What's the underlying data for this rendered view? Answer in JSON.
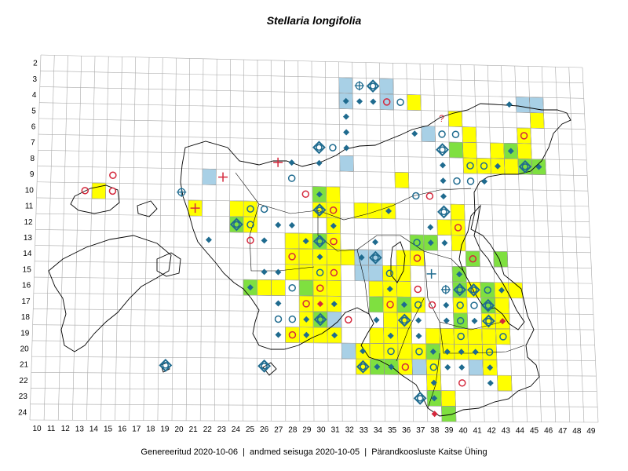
{
  "title": "Stellaria longifolia",
  "footer": {
    "generated": "Genereeritud 2020-10-06",
    "status": "andmed seisuga 2020-10-05",
    "org": "Pärandkoosluste Kaitse Ühing",
    "separator": "|"
  },
  "grid": {
    "rows": [
      2,
      3,
      4,
      5,
      6,
      7,
      8,
      9,
      10,
      11,
      12,
      13,
      14,
      15,
      16,
      17,
      18,
      19,
      20,
      21,
      22,
      23,
      24
    ],
    "cols": [
      10,
      11,
      12,
      13,
      14,
      15,
      16,
      17,
      18,
      19,
      20,
      21,
      22,
      23,
      24,
      25,
      26,
      27,
      28,
      29,
      30,
      31,
      32,
      33,
      34,
      35,
      36,
      37,
      38,
      39,
      40,
      41,
      42,
      43,
      44,
      45,
      46,
      47,
      48,
      49
    ]
  },
  "colors": {
    "yellow": "#ffff00",
    "green": "#7fe040",
    "blue": "#a8d0e6",
    "marker_blue": "#1f6b8f",
    "marker_red": "#d4283c",
    "grid_line": "#aaaaaa",
    "coast": "#000000"
  },
  "cells": [
    {
      "c": 32,
      "r": 3,
      "t": "blue"
    },
    {
      "c": 35,
      "r": 3,
      "t": "blue"
    },
    {
      "c": 32,
      "r": 4,
      "t": "blue"
    },
    {
      "c": 35,
      "r": 4,
      "t": "blue"
    },
    {
      "c": 37,
      "r": 4,
      "t": "yellow"
    },
    {
      "c": 45,
      "r": 4,
      "t": "blue"
    },
    {
      "c": 46,
      "r": 4,
      "t": "blue"
    },
    {
      "c": 40,
      "r": 5,
      "t": "yellow"
    },
    {
      "c": 46,
      "r": 5,
      "t": "yellow"
    },
    {
      "c": 41,
      "r": 6,
      "t": "yellow"
    },
    {
      "c": 45,
      "r": 6,
      "t": "yellow"
    },
    {
      "c": 38,
      "r": 6,
      "t": "blue"
    },
    {
      "c": 40,
      "r": 7,
      "t": "green"
    },
    {
      "c": 41,
      "r": 7,
      "t": "yellow"
    },
    {
      "c": 43,
      "r": 7,
      "t": "yellow"
    },
    {
      "c": 44,
      "r": 7,
      "t": "green"
    },
    {
      "c": 45,
      "r": 7,
      "t": "yellow"
    },
    {
      "c": 32,
      "r": 8,
      "t": "blue"
    },
    {
      "c": 41,
      "r": 8,
      "t": "yellow"
    },
    {
      "c": 42,
      "r": 8,
      "t": "yellow"
    },
    {
      "c": 43,
      "r": 8,
      "t": "yellow"
    },
    {
      "c": 44,
      "r": 8,
      "t": "yellow"
    },
    {
      "c": 45,
      "r": 8,
      "t": "green"
    },
    {
      "c": 46,
      "r": 8,
      "t": "green"
    },
    {
      "c": 22,
      "r": 9,
      "t": "blue"
    },
    {
      "c": 36,
      "r": 9,
      "t": "yellow"
    },
    {
      "c": 14,
      "r": 10,
      "t": "yellow"
    },
    {
      "c": 30,
      "r": 10,
      "t": "green"
    },
    {
      "c": 31,
      "r": 10,
      "t": "yellow"
    },
    {
      "c": 21,
      "r": 11,
      "t": "yellow"
    },
    {
      "c": 24,
      "r": 11,
      "t": "yellow"
    },
    {
      "c": 25,
      "r": 11,
      "t": "yellow"
    },
    {
      "c": 30,
      "r": 11,
      "t": "yellow"
    },
    {
      "c": 31,
      "r": 11,
      "t": "yellow"
    },
    {
      "c": 33,
      "r": 11,
      "t": "yellow"
    },
    {
      "c": 34,
      "r": 11,
      "t": "yellow"
    },
    {
      "c": 35,
      "r": 11,
      "t": "yellow"
    },
    {
      "c": 40,
      "r": 11,
      "t": "yellow"
    },
    {
      "c": 24,
      "r": 12,
      "t": "green"
    },
    {
      "c": 25,
      "r": 12,
      "t": "yellow"
    },
    {
      "c": 31,
      "r": 12,
      "t": "yellow"
    },
    {
      "c": 39,
      "r": 12,
      "t": "yellow"
    },
    {
      "c": 40,
      "r": 12,
      "t": "yellow"
    },
    {
      "c": 28,
      "r": 13,
      "t": "yellow"
    },
    {
      "c": 29,
      "r": 13,
      "t": "yellow"
    },
    {
      "c": 30,
      "r": 13,
      "t": "green"
    },
    {
      "c": 31,
      "r": 13,
      "t": "yellow"
    },
    {
      "c": 37,
      "r": 13,
      "t": "green"
    },
    {
      "c": 38,
      "r": 13,
      "t": "green"
    },
    {
      "c": 40,
      "r": 13,
      "t": "yellow"
    },
    {
      "c": 28,
      "r": 14,
      "t": "yellow"
    },
    {
      "c": 29,
      "r": 14,
      "t": "yellow"
    },
    {
      "c": 30,
      "r": 14,
      "t": "yellow"
    },
    {
      "c": 31,
      "r": 14,
      "t": "yellow"
    },
    {
      "c": 32,
      "r": 14,
      "t": "yellow"
    },
    {
      "c": 33,
      "r": 14,
      "t": "blue"
    },
    {
      "c": 34,
      "r": 14,
      "t": "blue"
    },
    {
      "c": 36,
      "r": 14,
      "t": "yellow"
    },
    {
      "c": 37,
      "r": 14,
      "t": "yellow"
    },
    {
      "c": 41,
      "r": 14,
      "t": "green"
    },
    {
      "c": 43,
      "r": 14,
      "t": "green"
    },
    {
      "c": 28,
      "r": 15,
      "t": "yellow"
    },
    {
      "c": 29,
      "r": 15,
      "t": "yellow"
    },
    {
      "c": 30,
      "r": 15,
      "t": "yellow"
    },
    {
      "c": 31,
      "r": 15,
      "t": "yellow"
    },
    {
      "c": 33,
      "r": 15,
      "t": "blue"
    },
    {
      "c": 34,
      "r": 15,
      "t": "blue"
    },
    {
      "c": 35,
      "r": 15,
      "t": "yellow"
    },
    {
      "c": 36,
      "r": 15,
      "t": "yellow"
    },
    {
      "c": 40,
      "r": 15,
      "t": "green"
    },
    {
      "c": 25,
      "r": 16,
      "t": "green"
    },
    {
      "c": 26,
      "r": 16,
      "t": "yellow"
    },
    {
      "c": 27,
      "r": 16,
      "t": "yellow"
    },
    {
      "c": 29,
      "r": 16,
      "t": "green"
    },
    {
      "c": 30,
      "r": 16,
      "t": "yellow"
    },
    {
      "c": 31,
      "r": 16,
      "t": "yellow"
    },
    {
      "c": 34,
      "r": 16,
      "t": "yellow"
    },
    {
      "c": 35,
      "r": 16,
      "t": "yellow"
    },
    {
      "c": 36,
      "r": 16,
      "t": "yellow"
    },
    {
      "c": 40,
      "r": 16,
      "t": "green"
    },
    {
      "c": 41,
      "r": 16,
      "t": "yellow"
    },
    {
      "c": 42,
      "r": 16,
      "t": "green"
    },
    {
      "c": 43,
      "r": 16,
      "t": "yellow"
    },
    {
      "c": 44,
      "r": 16,
      "t": "yellow"
    },
    {
      "c": 29,
      "r": 17,
      "t": "yellow"
    },
    {
      "c": 30,
      "r": 17,
      "t": "yellow"
    },
    {
      "c": 31,
      "r": 17,
      "t": "yellow"
    },
    {
      "c": 34,
      "r": 17,
      "t": "green"
    },
    {
      "c": 35,
      "r": 17,
      "t": "yellow"
    },
    {
      "c": 36,
      "r": 17,
      "t": "green"
    },
    {
      "c": 37,
      "r": 17,
      "t": "yellow"
    },
    {
      "c": 40,
      "r": 17,
      "t": "yellow"
    },
    {
      "c": 42,
      "r": 17,
      "t": "green"
    },
    {
      "c": 43,
      "r": 17,
      "t": "yellow"
    },
    {
      "c": 29,
      "r": 18,
      "t": "yellow"
    },
    {
      "c": 30,
      "r": 18,
      "t": "green"
    },
    {
      "c": 31,
      "r": 18,
      "t": "blue"
    },
    {
      "c": 35,
      "r": 18,
      "t": "yellow"
    },
    {
      "c": 36,
      "r": 18,
      "t": "yellow"
    },
    {
      "c": 40,
      "r": 18,
      "t": "green"
    },
    {
      "c": 42,
      "r": 18,
      "t": "yellow"
    },
    {
      "c": 43,
      "r": 18,
      "t": "yellow"
    },
    {
      "c": 28,
      "r": 19,
      "t": "yellow"
    },
    {
      "c": 29,
      "r": 19,
      "t": "yellow"
    },
    {
      "c": 30,
      "r": 19,
      "t": "yellow"
    },
    {
      "c": 31,
      "r": 19,
      "t": "yellow"
    },
    {
      "c": 34,
      "r": 19,
      "t": "yellow"
    },
    {
      "c": 35,
      "r": 19,
      "t": "yellow"
    },
    {
      "c": 36,
      "r": 19,
      "t": "yellow"
    },
    {
      "c": 38,
      "r": 19,
      "t": "yellow"
    },
    {
      "c": 39,
      "r": 19,
      "t": "yellow"
    },
    {
      "c": 40,
      "r": 19,
      "t": "yellow"
    },
    {
      "c": 41,
      "r": 19,
      "t": "yellow"
    },
    {
      "c": 42,
      "r": 19,
      "t": "yellow"
    },
    {
      "c": 43,
      "r": 19,
      "t": "yellow"
    },
    {
      "c": 32,
      "r": 20,
      "t": "blue"
    },
    {
      "c": 33,
      "r": 20,
      "t": "yellow"
    },
    {
      "c": 34,
      "r": 20,
      "t": "yellow"
    },
    {
      "c": 35,
      "r": 20,
      "t": "yellow"
    },
    {
      "c": 36,
      "r": 20,
      "t": "yellow"
    },
    {
      "c": 37,
      "r": 20,
      "t": "yellow"
    },
    {
      "c": 38,
      "r": 20,
      "t": "green"
    },
    {
      "c": 39,
      "r": 20,
      "t": "yellow"
    },
    {
      "c": 40,
      "r": 20,
      "t": "yellow"
    },
    {
      "c": 41,
      "r": 20,
      "t": "yellow"
    },
    {
      "c": 42,
      "r": 20,
      "t": "yellow"
    },
    {
      "c": 33,
      "r": 21,
      "t": "yellow"
    },
    {
      "c": 34,
      "r": 21,
      "t": "green"
    },
    {
      "c": 35,
      "r": 21,
      "t": "green"
    },
    {
      "c": 36,
      "r": 21,
      "t": "yellow"
    },
    {
      "c": 37,
      "r": 21,
      "t": "blue"
    },
    {
      "c": 38,
      "r": 21,
      "t": "yellow"
    },
    {
      "c": 41,
      "r": 21,
      "t": "blue"
    },
    {
      "c": 42,
      "r": 21,
      "t": "yellow"
    },
    {
      "c": 38,
      "r": 22,
      "t": "yellow"
    },
    {
      "c": 43,
      "r": 22,
      "t": "yellow"
    },
    {
      "c": 38,
      "r": 23,
      "t": "green"
    },
    {
      "c": 39,
      "r": 23,
      "t": "yellow"
    },
    {
      "c": 39,
      "r": 24,
      "t": "green"
    }
  ],
  "markers": [
    {
      "c": 33,
      "r": 3,
      "t": "target"
    },
    {
      "c": 34,
      "r": 3,
      "t": "circle-diamond"
    },
    {
      "c": 32,
      "r": 4,
      "t": "diamond"
    },
    {
      "c": 33,
      "r": 4,
      "t": "diamond"
    },
    {
      "c": 34,
      "r": 4,
      "t": "diamond"
    },
    {
      "c": 35,
      "r": 4,
      "t": "circle-red"
    },
    {
      "c": 36,
      "r": 4,
      "t": "circle-blue"
    },
    {
      "c": 44,
      "r": 4,
      "t": "diamond"
    },
    {
      "c": 32,
      "r": 5,
      "t": "diamond"
    },
    {
      "c": 39,
      "r": 5,
      "t": "question"
    },
    {
      "c": 32,
      "r": 6,
      "t": "diamond"
    },
    {
      "c": 37,
      "r": 6,
      "t": "diamond"
    },
    {
      "c": 39,
      "r": 6,
      "t": "circle-blue"
    },
    {
      "c": 40,
      "r": 6,
      "t": "circle-blue"
    },
    {
      "c": 45,
      "r": 6,
      "t": "circle-red"
    },
    {
      "c": 30,
      "r": 7,
      "t": "circle-diamond"
    },
    {
      "c": 31,
      "r": 7,
      "t": "circle-blue"
    },
    {
      "c": 32,
      "r": 7,
      "t": "diamond"
    },
    {
      "c": 39,
      "r": 7,
      "t": "circle-diamond"
    },
    {
      "c": 44,
      "r": 7,
      "t": "diamond"
    },
    {
      "c": 27,
      "r": 8,
      "t": "cross-red"
    },
    {
      "c": 28,
      "r": 8,
      "t": "diamond"
    },
    {
      "c": 30,
      "r": 8,
      "t": "diamond"
    },
    {
      "c": 39,
      "r": 8,
      "t": "diamond"
    },
    {
      "c": 41,
      "r": 8,
      "t": "circle-blue"
    },
    {
      "c": 42,
      "r": 8,
      "t": "circle-blue"
    },
    {
      "c": 43,
      "r": 8,
      "t": "diamond"
    },
    {
      "c": 45,
      "r": 8,
      "t": "circle-diamond"
    },
    {
      "c": 46,
      "r": 8,
      "t": "diamond"
    },
    {
      "c": 15,
      "r": 9,
      "t": "circle-red"
    },
    {
      "c": 23,
      "r": 9,
      "t": "cross-red"
    },
    {
      "c": 28,
      "r": 9,
      "t": "circle-blue"
    },
    {
      "c": 39,
      "r": 9,
      "t": "diamond"
    },
    {
      "c": 40,
      "r": 9,
      "t": "circle-blue"
    },
    {
      "c": 41,
      "r": 9,
      "t": "circle-blue"
    },
    {
      "c": 42,
      "r": 9,
      "t": "diamond"
    },
    {
      "c": 13,
      "r": 10,
      "t": "circle-red"
    },
    {
      "c": 15,
      "r": 10,
      "t": "circle-red"
    },
    {
      "c": 20,
      "r": 10,
      "t": "target"
    },
    {
      "c": 29,
      "r": 10,
      "t": "circle-red"
    },
    {
      "c": 30,
      "r": 10,
      "t": "diamond"
    },
    {
      "c": 37,
      "r": 10,
      "t": "circle-blue"
    },
    {
      "c": 38,
      "r": 10,
      "t": "circle-red"
    },
    {
      "c": 39,
      "r": 10,
      "t": "diamond"
    },
    {
      "c": 21,
      "r": 11,
      "t": "cross-red"
    },
    {
      "c": 25,
      "r": 11,
      "t": "circle-blue"
    },
    {
      "c": 26,
      "r": 11,
      "t": "circle-blue"
    },
    {
      "c": 30,
      "r": 11,
      "t": "circle-diamond"
    },
    {
      "c": 31,
      "r": 11,
      "t": "circle-red"
    },
    {
      "c": 35,
      "r": 11,
      "t": "diamond"
    },
    {
      "c": 39,
      "r": 11,
      "t": "circle-diamond"
    },
    {
      "c": 24,
      "r": 12,
      "t": "circle-diamond"
    },
    {
      "c": 25,
      "r": 12,
      "t": "circle-blue"
    },
    {
      "c": 27,
      "r": 12,
      "t": "diamond"
    },
    {
      "c": 28,
      "r": 12,
      "t": "diamond"
    },
    {
      "c": 31,
      "r": 12,
      "t": "diamond"
    },
    {
      "c": 38,
      "r": 12,
      "t": "diamond"
    },
    {
      "c": 40,
      "r": 12,
      "t": "circle-red"
    },
    {
      "c": 22,
      "r": 13,
      "t": "diamond"
    },
    {
      "c": 25,
      "r": 13,
      "t": "circle-red"
    },
    {
      "c": 26,
      "r": 13,
      "t": "diamond"
    },
    {
      "c": 29,
      "r": 13,
      "t": "diamond"
    },
    {
      "c": 30,
      "r": 13,
      "t": "circle-diamond"
    },
    {
      "c": 31,
      "r": 13,
      "t": "circle-red"
    },
    {
      "c": 34,
      "r": 13,
      "t": "diamond"
    },
    {
      "c": 37,
      "r": 13,
      "t": "circle-blue"
    },
    {
      "c": 38,
      "r": 13,
      "t": "diamond"
    },
    {
      "c": 39,
      "r": 13,
      "t": "diamond"
    },
    {
      "c": 28,
      "r": 14,
      "t": "circle-red"
    },
    {
      "c": 30,
      "r": 14,
      "t": "diamond"
    },
    {
      "c": 33,
      "r": 14,
      "t": "diamond"
    },
    {
      "c": 34,
      "r": 14,
      "t": "circle-diamond"
    },
    {
      "c": 37,
      "r": 14,
      "t": "circle-red"
    },
    {
      "c": 41,
      "r": 14,
      "t": "circle-red"
    },
    {
      "c": 26,
      "r": 15,
      "t": "diamond"
    },
    {
      "c": 27,
      "r": 15,
      "t": "diamond"
    },
    {
      "c": 30,
      "r": 15,
      "t": "circle-blue"
    },
    {
      "c": 31,
      "r": 15,
      "t": "circle-red"
    },
    {
      "c": 35,
      "r": 15,
      "t": "circle-blue"
    },
    {
      "c": 38,
      "r": 15,
      "t": "cross-blue"
    },
    {
      "c": 40,
      "r": 15,
      "t": "diamond"
    },
    {
      "c": 25,
      "r": 16,
      "t": "diamond"
    },
    {
      "c": 28,
      "r": 16,
      "t": "circle-blue"
    },
    {
      "c": 30,
      "r": 16,
      "t": "circle-red"
    },
    {
      "c": 35,
      "r": 16,
      "t": "diamond"
    },
    {
      "c": 37,
      "r": 16,
      "t": "circle-red"
    },
    {
      "c": 39,
      "r": 16,
      "t": "target"
    },
    {
      "c": 40,
      "r": 16,
      "t": "circle-diamond"
    },
    {
      "c": 41,
      "r": 16,
      "t": "circle-diamond"
    },
    {
      "c": 42,
      "r": 16,
      "t": "circle-blue"
    },
    {
      "c": 43,
      "r": 16,
      "t": "diamond"
    },
    {
      "c": 27,
      "r": 17,
      "t": "diamond"
    },
    {
      "c": 29,
      "r": 17,
      "t": "circle-red"
    },
    {
      "c": 30,
      "r": 17,
      "t": "diamond-red"
    },
    {
      "c": 31,
      "r": 17,
      "t": "diamond"
    },
    {
      "c": 35,
      "r": 17,
      "t": "circle-red"
    },
    {
      "c": 36,
      "r": 17,
      "t": "diamond"
    },
    {
      "c": 37,
      "r": 17,
      "t": "circle-blue"
    },
    {
      "c": 38,
      "r": 17,
      "t": "circle-red"
    },
    {
      "c": 39,
      "r": 17,
      "t": "diamond"
    },
    {
      "c": 40,
      "r": 17,
      "t": "circle-blue"
    },
    {
      "c": 41,
      "r": 17,
      "t": "circle-blue"
    },
    {
      "c": 42,
      "r": 17,
      "t": "circle-diamond"
    },
    {
      "c": 27,
      "r": 18,
      "t": "circle-blue"
    },
    {
      "c": 28,
      "r": 18,
      "t": "circle-blue"
    },
    {
      "c": 29,
      "r": 18,
      "t": "diamond"
    },
    {
      "c": 30,
      "r": 18,
      "t": "circle-diamond"
    },
    {
      "c": 32,
      "r": 18,
      "t": "circle-red"
    },
    {
      "c": 34,
      "r": 18,
      "t": "diamond"
    },
    {
      "c": 36,
      "r": 18,
      "t": "circle-diamond"
    },
    {
      "c": 37,
      "r": 18,
      "t": "diamond"
    },
    {
      "c": 39,
      "r": 18,
      "t": "diamond"
    },
    {
      "c": 40,
      "r": 18,
      "t": "circle-blue"
    },
    {
      "c": 41,
      "r": 18,
      "t": "diamond"
    },
    {
      "c": 42,
      "r": 18,
      "t": "circle-diamond"
    },
    {
      "c": 43,
      "r": 18,
      "t": "diamond-red"
    },
    {
      "c": 27,
      "r": 19,
      "t": "diamond"
    },
    {
      "c": 28,
      "r": 19,
      "t": "circle-red"
    },
    {
      "c": 29,
      "r": 19,
      "t": "diamond"
    },
    {
      "c": 31,
      "r": 19,
      "t": "diamond"
    },
    {
      "c": 35,
      "r": 19,
      "t": "diamond"
    },
    {
      "c": 37,
      "r": 19,
      "t": "diamond"
    },
    {
      "c": 40,
      "r": 19,
      "t": "circle-blue"
    },
    {
      "c": 43,
      "r": 19,
      "t": "circle-blue"
    },
    {
      "c": 33,
      "r": 20,
      "t": "diamond"
    },
    {
      "c": 35,
      "r": 20,
      "t": "circle-blue"
    },
    {
      "c": 37,
      "r": 20,
      "t": "circle-blue"
    },
    {
      "c": 38,
      "r": 20,
      "t": "diamond"
    },
    {
      "c": 39,
      "r": 20,
      "t": "diamond"
    },
    {
      "c": 40,
      "r": 20,
      "t": "diamond"
    },
    {
      "c": 41,
      "r": 20,
      "t": "diamond"
    },
    {
      "c": 42,
      "r": 20,
      "t": "circle-blue"
    },
    {
      "c": 19,
      "r": 21,
      "t": "circle-diamond"
    },
    {
      "c": 26,
      "r": 21,
      "t": "circle-diamond"
    },
    {
      "c": 33,
      "r": 21,
      "t": "circle-diamond"
    },
    {
      "c": 34,
      "r": 21,
      "t": "diamond"
    },
    {
      "c": 35,
      "r": 21,
      "t": "diamond"
    },
    {
      "c": 36,
      "r": 21,
      "t": "circle-red"
    },
    {
      "c": 38,
      "r": 21,
      "t": "circle-blue"
    },
    {
      "c": 39,
      "r": 21,
      "t": "diamond"
    },
    {
      "c": 40,
      "r": 21,
      "t": "diamond"
    },
    {
      "c": 42,
      "r": 21,
      "t": "diamond"
    },
    {
      "c": 38,
      "r": 22,
      "t": "diamond"
    },
    {
      "c": 40,
      "r": 22,
      "t": "circle-red"
    },
    {
      "c": 42,
      "r": 22,
      "t": "diamond"
    },
    {
      "c": 37,
      "r": 23,
      "t": "circle-diamond"
    },
    {
      "c": 38,
      "r": 23,
      "t": "diamond"
    },
    {
      "c": 38,
      "r": 24,
      "t": "diamond-red"
    }
  ]
}
